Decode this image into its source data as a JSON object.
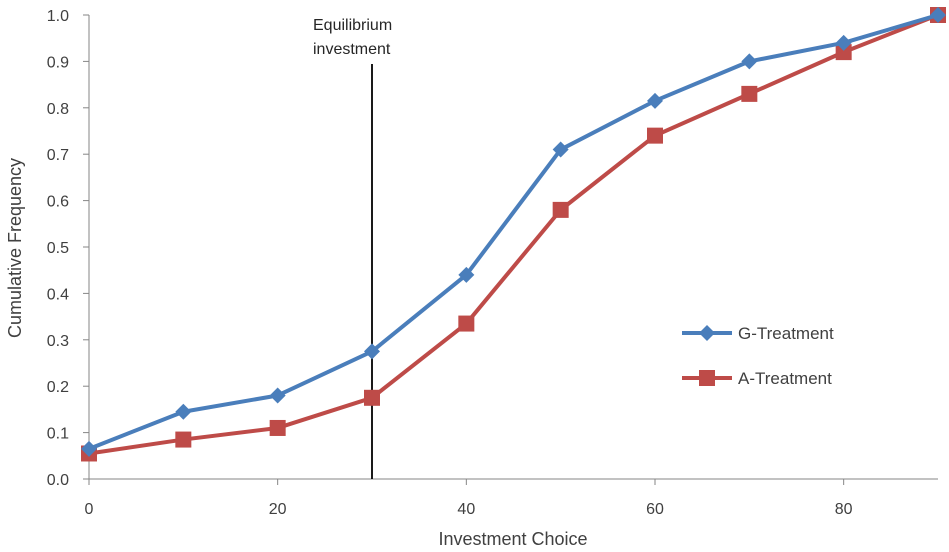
{
  "chart_data": {
    "type": "line",
    "title": "",
    "xlabel": "Investment Choice",
    "ylabel": "Cumulative Frequency",
    "xlim": [
      0,
      90
    ],
    "ylim": [
      0,
      1.0
    ],
    "x_ticks": [
      0,
      20,
      40,
      60,
      80
    ],
    "x_tick_labels": [
      "0",
      "20",
      "40",
      "60",
      "80"
    ],
    "y_ticks": [
      0,
      0.1,
      0.2,
      0.3,
      0.4,
      0.5,
      0.6,
      0.7,
      0.8,
      0.9,
      1.0
    ],
    "y_tick_labels": [
      "0.0",
      "0.1",
      "0.2",
      "0.3",
      "0.4",
      "0.5",
      "0.6",
      "0.7",
      "0.8",
      "0.9",
      "1.0"
    ],
    "grid": false,
    "legend_position": "right",
    "x": [
      0,
      10,
      20,
      30,
      40,
      50,
      60,
      70,
      80,
      90
    ],
    "series": [
      {
        "name": "G-Treatment",
        "color": "#4a7ebb",
        "marker": "diamond",
        "values": [
          0.065,
          0.145,
          0.18,
          0.275,
          0.44,
          0.71,
          0.815,
          0.9,
          0.94,
          1.0
        ]
      },
      {
        "name": "A-Treatment",
        "color": "#be4b48",
        "marker": "square",
        "values": [
          0.055,
          0.085,
          0.11,
          0.175,
          0.335,
          0.58,
          0.74,
          0.83,
          0.92,
          1.0
        ]
      }
    ],
    "annotations": [
      {
        "text_lines": [
          "Equilibrium",
          "investment"
        ],
        "x": 30
      }
    ]
  }
}
